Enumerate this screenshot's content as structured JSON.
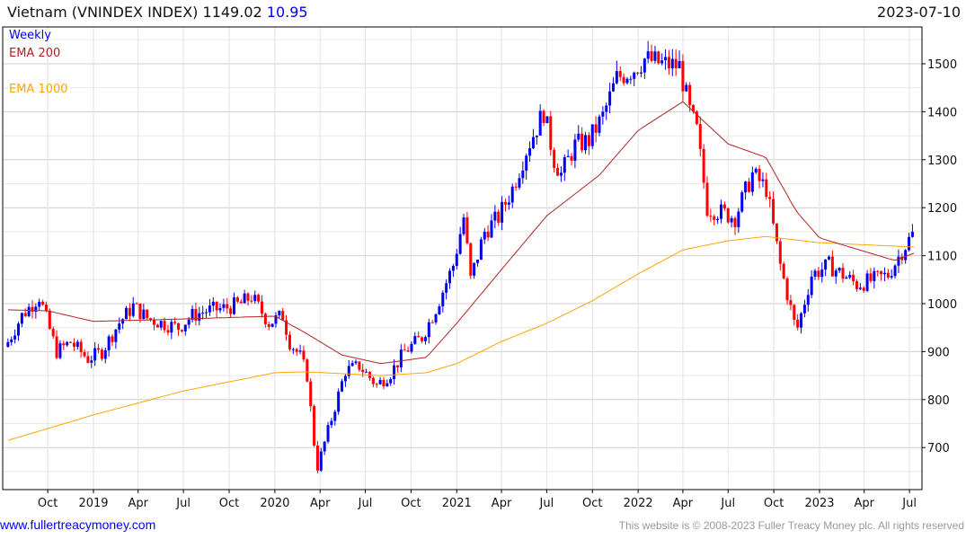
{
  "header": {
    "title": "Vietnam (VNINDEX INDEX)",
    "last": "1149.02",
    "change": "10.95",
    "date": "2023-07-10"
  },
  "legend": {
    "period": "Weekly",
    "ema200": "EMA 200",
    "ema1000": "EMA 1000"
  },
  "footer": {
    "site": "www.fullertreacymoney.com",
    "copyright": "This website is © 2008-2023 Fuller Treacy Money plc. All rights reserved"
  },
  "colors": {
    "up": "#0000ee",
    "down": "#ff0000",
    "ema200": "#b22222",
    "ema1000": "#ffa500",
    "grid": "#dddddd"
  },
  "chart_data": {
    "type": "candlestick",
    "title": "Vietnam (VNINDEX INDEX) weekly",
    "ylim": [
      630,
      1560
    ],
    "y_ticks": [
      700,
      800,
      900,
      1000,
      1100,
      1200,
      1300,
      1400,
      1500
    ],
    "x_range": [
      "2018-07-13",
      "2023-07-10"
    ],
    "x_ticks": [
      {
        "date": "2018-10-01",
        "label": "Oct"
      },
      {
        "date": "2019-01-01",
        "label": "2019"
      },
      {
        "date": "2019-04-01",
        "label": "Apr"
      },
      {
        "date": "2019-07-01",
        "label": "Jul"
      },
      {
        "date": "2019-10-01",
        "label": "Oct"
      },
      {
        "date": "2020-01-01",
        "label": "2020"
      },
      {
        "date": "2020-04-01",
        "label": "Apr"
      },
      {
        "date": "2020-07-01",
        "label": "Jul"
      },
      {
        "date": "2020-10-01",
        "label": "Oct"
      },
      {
        "date": "2021-01-01",
        "label": "2021"
      },
      {
        "date": "2021-04-01",
        "label": "Apr"
      },
      {
        "date": "2021-07-01",
        "label": "Jul"
      },
      {
        "date": "2021-10-01",
        "label": "Oct"
      },
      {
        "date": "2022-01-01",
        "label": "2022"
      },
      {
        "date": "2022-04-01",
        "label": "Apr"
      },
      {
        "date": "2022-07-01",
        "label": "Jul"
      },
      {
        "date": "2022-10-01",
        "label": "Oct"
      },
      {
        "date": "2023-01-01",
        "label": "2023"
      },
      {
        "date": "2023-04-01",
        "label": "Apr"
      },
      {
        "date": "2023-07-01",
        "label": "Jul"
      }
    ],
    "close_approx": [
      [
        "2018-07-13",
        920
      ],
      [
        "2018-08-10",
        975
      ],
      [
        "2018-09-14",
        1015
      ],
      [
        "2018-10-19",
        900
      ],
      [
        "2018-11-16",
        920
      ],
      [
        "2018-12-21",
        885
      ],
      [
        "2019-01-18",
        900
      ],
      [
        "2019-02-22",
        960
      ],
      [
        "2019-03-22",
        995
      ],
      [
        "2019-04-19",
        970
      ],
      [
        "2019-05-17",
        960
      ],
      [
        "2019-06-21",
        950
      ],
      [
        "2019-07-19",
        975
      ],
      [
        "2019-08-16",
        985
      ],
      [
        "2019-09-20",
        990
      ],
      [
        "2019-10-25",
        1000
      ],
      [
        "2019-11-15",
        1015
      ],
      [
        "2019-12-20",
        960
      ],
      [
        "2020-01-17",
        975
      ],
      [
        "2020-01-31",
        920
      ],
      [
        "2020-02-21",
        890
      ],
      [
        "2020-03-06",
        850
      ],
      [
        "2020-03-20",
        710
      ],
      [
        "2020-03-27",
        660
      ],
      [
        "2020-04-24",
        760
      ],
      [
        "2020-05-22",
        860
      ],
      [
        "2020-06-19",
        870
      ],
      [
        "2020-07-24",
        830
      ],
      [
        "2020-08-21",
        855
      ],
      [
        "2020-09-18",
        900
      ],
      [
        "2020-10-23",
        930
      ],
      [
        "2020-11-20",
        990
      ],
      [
        "2020-12-25",
        1080
      ],
      [
        "2021-01-15",
        1180
      ],
      [
        "2021-01-29",
        1050
      ],
      [
        "2021-02-26",
        1150
      ],
      [
        "2021-03-26",
        1180
      ],
      [
        "2021-04-23",
        1240
      ],
      [
        "2021-05-21",
        1320
      ],
      [
        "2021-06-25",
        1400
      ],
      [
        "2021-07-16",
        1300
      ],
      [
        "2021-07-30",
        1270
      ],
      [
        "2021-08-27",
        1330
      ],
      [
        "2021-09-24",
        1340
      ],
      [
        "2021-10-22",
        1390
      ],
      [
        "2021-11-19",
        1470
      ],
      [
        "2021-12-24",
        1490
      ],
      [
        "2022-01-14",
        1510
      ],
      [
        "2022-02-18",
        1500
      ],
      [
        "2022-03-25",
        1495
      ],
      [
        "2022-04-15",
        1400
      ],
      [
        "2022-04-29",
        1360
      ],
      [
        "2022-05-20",
        1200
      ],
      [
        "2022-06-17",
        1190
      ],
      [
        "2022-07-15",
        1180
      ],
      [
        "2022-08-19",
        1270
      ],
      [
        "2022-09-16",
        1240
      ],
      [
        "2022-10-14",
        1080
      ],
      [
        "2022-11-11",
        960
      ],
      [
        "2022-11-18",
        950
      ],
      [
        "2022-12-16",
        1060
      ],
      [
        "2023-01-20",
        1080
      ],
      [
        "2023-02-17",
        1060
      ],
      [
        "2023-03-17",
        1040
      ],
      [
        "2023-04-21",
        1050
      ],
      [
        "2023-05-19",
        1060
      ],
      [
        "2023-06-16",
        1110
      ],
      [
        "2023-07-10",
        1149.02
      ]
    ],
    "ema200_approx": [
      [
        "2018-07-13",
        987
      ],
      [
        "2018-10-01",
        985
      ],
      [
        "2019-01-01",
        963
      ],
      [
        "2019-07-01",
        968
      ],
      [
        "2020-01-01",
        974
      ],
      [
        "2020-03-01",
        940
      ],
      [
        "2020-05-15",
        893
      ],
      [
        "2020-08-01",
        875
      ],
      [
        "2020-11-01",
        888
      ],
      [
        "2021-01-01",
        959
      ],
      [
        "2021-04-01",
        1071
      ],
      [
        "2021-07-01",
        1183
      ],
      [
        "2021-10-15",
        1268
      ],
      [
        "2022-01-01",
        1361
      ],
      [
        "2022-04-01",
        1421
      ],
      [
        "2022-07-01",
        1333
      ],
      [
        "2022-09-15",
        1305
      ],
      [
        "2022-11-15",
        1193
      ],
      [
        "2023-01-01",
        1137
      ],
      [
        "2023-04-01",
        1109
      ],
      [
        "2023-06-01",
        1090
      ],
      [
        "2023-07-10",
        1105
      ]
    ],
    "ema1000_approx": [
      [
        "2018-07-13",
        715
      ],
      [
        "2019-01-01",
        768
      ],
      [
        "2019-07-01",
        818
      ],
      [
        "2020-01-01",
        856
      ],
      [
        "2020-03-01",
        858
      ],
      [
        "2020-08-01",
        850
      ],
      [
        "2020-11-01",
        856
      ],
      [
        "2021-01-01",
        875
      ],
      [
        "2021-04-01",
        921
      ],
      [
        "2021-07-01",
        959
      ],
      [
        "2021-10-01",
        1006
      ],
      [
        "2022-01-01",
        1062
      ],
      [
        "2022-04-01",
        1112
      ],
      [
        "2022-07-01",
        1131
      ],
      [
        "2022-09-15",
        1140
      ],
      [
        "2023-01-01",
        1127
      ],
      [
        "2023-07-10",
        1118
      ]
    ]
  }
}
